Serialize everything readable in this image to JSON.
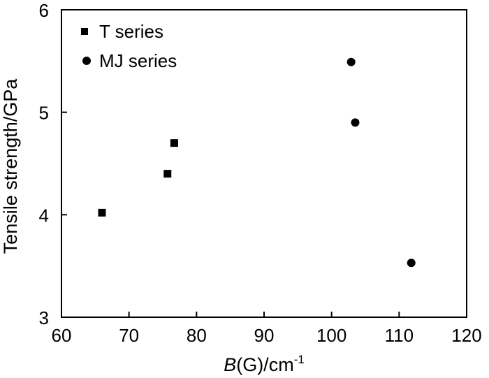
{
  "chart_data": {
    "type": "scatter",
    "title": "",
    "xlabel_italic": "B",
    "xlabel_rest": "(G)/cm",
    "xlabel_superscript": "-1",
    "ylabel": "Tensile strength/GPa",
    "xlim": [
      60,
      120
    ],
    "ylim": [
      3,
      6
    ],
    "xticks": [
      60,
      70,
      80,
      90,
      100,
      110,
      120
    ],
    "yticks": [
      3,
      4,
      5,
      6
    ],
    "xtick_labels": [
      "60",
      "70",
      "80",
      "90",
      "100",
      "110",
      "120"
    ],
    "ytick_labels": [
      "3",
      "4",
      "5",
      "6"
    ],
    "grid": false,
    "legend_position": "top-left",
    "series": [
      {
        "name": "T series",
        "marker": "square",
        "color": "#000000",
        "points": [
          {
            "x": 66.0,
            "y": 4.02
          },
          {
            "x": 75.7,
            "y": 4.4
          },
          {
            "x": 76.7,
            "y": 4.7
          }
        ]
      },
      {
        "name": "MJ series",
        "marker": "circle",
        "color": "#000000",
        "points": [
          {
            "x": 102.9,
            "y": 5.49
          },
          {
            "x": 103.5,
            "y": 4.9
          },
          {
            "x": 111.8,
            "y": 3.53
          }
        ]
      }
    ]
  }
}
